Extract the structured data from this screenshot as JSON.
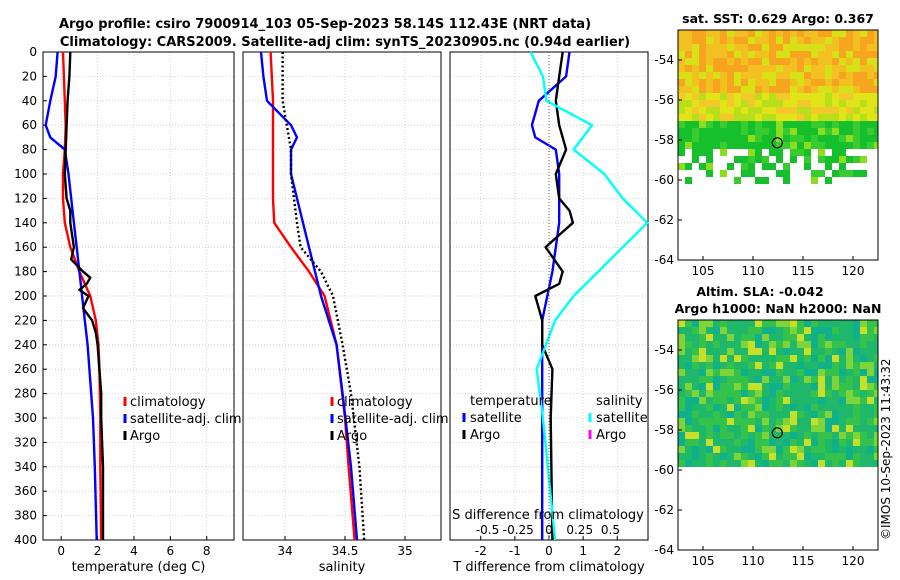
{
  "title": {
    "line1": "Argo profile: csiro 7900914_103 05-Sep-2023 58.14S 112.43E (NRT data)",
    "line2": "Climatology: CARS2009. Satellite-adj clim: synTS_20230905.nc (0.94d earlier)"
  },
  "credit": "©IMOS 10-Sep-2023 11:43:32",
  "colors": {
    "climatology": "#ff0000",
    "satellite": "#0000ff",
    "argo": "#000000",
    "salinity_sat": "#00ffff",
    "salinity_argo": "#ff00ff"
  },
  "chart_data": [
    {
      "type": "line",
      "name": "temperature",
      "xlabel": "temperature (deg C)",
      "ylabel": "",
      "xlim": [
        -1,
        9.5
      ],
      "ylim": [
        0,
        400
      ],
      "xticks": [
        0,
        2,
        4,
        6,
        8
      ],
      "yticks": [
        0,
        20,
        40,
        60,
        80,
        100,
        120,
        140,
        160,
        180,
        200,
        220,
        240,
        260,
        280,
        300,
        320,
        340,
        360,
        380,
        400
      ],
      "legend": [
        "climatology",
        "satellite-adj. clim",
        "Argo"
      ],
      "series": [
        {
          "name": "climatology",
          "color": "#ff0000",
          "style": "solid",
          "depth": [
            0,
            20,
            40,
            60,
            80,
            100,
            120,
            140,
            160,
            180,
            200,
            220,
            240,
            260,
            300,
            340,
            400
          ],
          "values": [
            0.1,
            0.15,
            0.2,
            0.25,
            0.2,
            0.1,
            0.1,
            0.2,
            0.5,
            1.0,
            1.6,
            1.9,
            2.05,
            2.1,
            2.15,
            2.15,
            2.2
          ]
        },
        {
          "name": "satellite-adj. clim",
          "color": "#0000ff",
          "style": "solid",
          "depth": [
            0,
            20,
            40,
            60,
            70,
            80,
            100,
            120,
            140,
            160,
            180,
            200,
            220,
            240,
            260,
            300,
            340,
            400
          ],
          "values": [
            -0.2,
            -0.3,
            -0.6,
            -0.85,
            -0.6,
            0.2,
            0.4,
            0.55,
            0.7,
            0.85,
            1.0,
            1.15,
            1.3,
            1.45,
            1.55,
            1.75,
            1.85,
            1.95
          ]
        },
        {
          "name": "Argo",
          "color": "#000000",
          "style": "solid",
          "depth": [
            0,
            20,
            40,
            60,
            80,
            100,
            120,
            130,
            140,
            150,
            160,
            170,
            180,
            185,
            190,
            195,
            200,
            210,
            220,
            230,
            240,
            260,
            280,
            300,
            340,
            400
          ],
          "values": [
            0.5,
            0.45,
            0.35,
            0.3,
            0.25,
            0.2,
            0.3,
            0.5,
            0.5,
            0.6,
            0.7,
            0.55,
            1.2,
            1.6,
            1.4,
            1.0,
            1.5,
            1.2,
            1.7,
            1.9,
            2.0,
            2.1,
            2.2,
            2.2,
            2.3,
            2.3
          ]
        }
      ]
    },
    {
      "type": "line",
      "name": "salinity",
      "xlabel": "salinity",
      "xlim": [
        33.65,
        35.3
      ],
      "ylim": [
        0,
        400
      ],
      "xticks": [
        34,
        34.5,
        35
      ],
      "xticklabels": [
        "34",
        "34.5",
        "35"
      ],
      "legend": [
        "climatology",
        "satellite-adj. clim",
        "Argo"
      ],
      "series": [
        {
          "name": "climatology",
          "color": "#ff0000",
          "style": "solid",
          "depth": [
            0,
            40,
            80,
            100,
            120,
            140,
            160,
            180,
            200,
            240,
            300,
            340,
            400
          ],
          "values": [
            33.88,
            33.9,
            33.9,
            33.9,
            33.9,
            33.91,
            34.05,
            34.2,
            34.33,
            34.43,
            34.5,
            34.53,
            34.58
          ]
        },
        {
          "name": "satellite-adj. clim",
          "color": "#0000ff",
          "style": "solid",
          "depth": [
            0,
            20,
            40,
            60,
            70,
            80,
            100,
            120,
            140,
            160,
            180,
            200,
            240,
            280,
            340,
            400
          ],
          "values": [
            33.8,
            33.82,
            33.85,
            34.05,
            34.1,
            34.05,
            34.05,
            34.1,
            34.15,
            34.2,
            34.25,
            34.3,
            34.43,
            34.48,
            34.55,
            34.6
          ]
        },
        {
          "name": "Argo",
          "color": "#000000",
          "style": "dotted",
          "depth": [
            0,
            40,
            80,
            100,
            140,
            160,
            180,
            200,
            240,
            280,
            340,
            400
          ],
          "values": [
            33.98,
            33.98,
            34.05,
            34.05,
            34.1,
            34.13,
            34.3,
            34.4,
            34.48,
            34.55,
            34.62,
            34.66
          ]
        }
      ]
    },
    {
      "type": "line",
      "name": "difference",
      "xlabel": "T difference from climatology",
      "xlim": [
        -2.9,
        2.9
      ],
      "ylim": [
        0,
        400
      ],
      "xticks": [
        -2,
        -1,
        0,
        1,
        2
      ],
      "xticklabels": [
        "-2",
        "-1",
        "0",
        "1",
        "2"
      ],
      "secondary_axis": {
        "label": "S difference from climatology",
        "ticks": [
          -0.5,
          -0.25,
          0,
          0.25,
          0.5
        ],
        "ticklabels": [
          "-0.5",
          "-0.25",
          "0",
          "0.25",
          "0.5"
        ]
      },
      "legend_temperature": {
        "title": "temperature",
        "items": [
          "satellite",
          "Argo"
        ]
      },
      "legend_salinity": {
        "title": "salinity",
        "items": [
          "satellite",
          "Argo"
        ]
      },
      "series": [
        {
          "name": "T satellite",
          "color": "#0000ff",
          "depth": [
            0,
            20,
            40,
            60,
            70,
            80,
            100,
            140,
            180,
            220,
            300,
            400
          ],
          "values": [
            0.6,
            0.5,
            -0.3,
            -0.5,
            -0.4,
            0.2,
            0.3,
            0.3,
            0.1,
            -0.2,
            -0.2,
            -0.2
          ]
        },
        {
          "name": "T Argo",
          "color": "#000000",
          "depth": [
            0,
            20,
            40,
            60,
            80,
            100,
            120,
            130,
            140,
            150,
            160,
            180,
            190,
            200,
            220,
            240,
            260,
            300,
            400
          ],
          "values": [
            0.4,
            0.3,
            0.2,
            0.3,
            0.5,
            0.2,
            0.3,
            0.6,
            0.7,
            0.3,
            -0.1,
            0.4,
            0.3,
            -0.4,
            -0.2,
            -0.2,
            0.1,
            0.05,
            0.1
          ]
        },
        {
          "name": "S satellite",
          "color": "#00ffff",
          "depth": [
            0,
            20,
            40,
            60,
            80,
            100,
            120,
            140,
            160,
            180,
            200,
            220,
            260,
            300,
            400
          ],
          "values": [
            -0.15,
            -0.05,
            -0.02,
            0.35,
            0.2,
            0.45,
            0.6,
            0.8,
            0.6,
            0.4,
            0.2,
            0.05,
            -0.1,
            -0.05,
            0.05
          ]
        },
        {
          "name": "S Argo",
          "color": "#ff00ff",
          "depth": [],
          "values": []
        }
      ]
    },
    {
      "type": "heatmap",
      "name": "sat SST map",
      "title": "sat. SST: 0.629 Argo: 0.367",
      "xlim": [
        102.5,
        122.5
      ],
      "ylim": [
        -64,
        -52.5
      ],
      "xticks": [
        105,
        110,
        115,
        120
      ],
      "yticks": [
        -54,
        -56,
        -58,
        -60,
        -62,
        -64
      ],
      "marker": {
        "lon": 112.43,
        "lat": -58.14
      }
    },
    {
      "type": "heatmap",
      "name": "altim SLA map",
      "title": "Altim. SLA: -0.042",
      "subtitle": "Argo h1000: NaN h2000: NaN",
      "xlim": [
        102.5,
        122.5
      ],
      "ylim": [
        -64,
        -52.5
      ],
      "xticks": [
        105,
        110,
        115,
        120
      ],
      "yticks": [
        -54,
        -56,
        -58,
        -60,
        -62,
        -64
      ],
      "marker": {
        "lon": 112.43,
        "lat": -58.14
      }
    }
  ]
}
